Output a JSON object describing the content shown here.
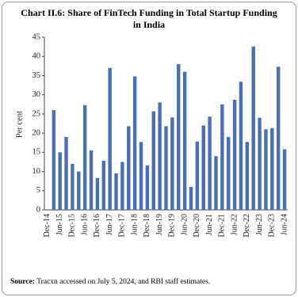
{
  "chart_data": {
    "type": "bar",
    "title": "Chart II.6: Share of FinTech Funding in Total Startup Funding in India",
    "y_label": "Per cent",
    "source_label": "Source:",
    "source_text": "Tracxn accessed on July 5, 2024, and RBI staff estimates.",
    "categories": [
      "Dec-14",
      null,
      "Jun-15",
      null,
      "Dec-15",
      null,
      "Jun-16",
      null,
      "Dec-16",
      null,
      "Jun-17",
      null,
      "Dec-17",
      null,
      "Jun-18",
      null,
      "Dec-18",
      null,
      "Jun-19",
      null,
      "Dec-19",
      null,
      "Jun-20",
      null,
      "Dec-20",
      null,
      "Jun-21",
      null,
      "Dec-21",
      null,
      "Jun-22",
      null,
      "Dec-22",
      null,
      "Jun-23",
      null,
      "Dec-23",
      null,
      "Jun-24"
    ],
    "values": [
      null,
      26,
      15,
      19,
      12,
      10,
      27.3,
      15.5,
      8.3,
      12.8,
      37,
      9.5,
      12.5,
      21.8,
      34.8,
      17.7,
      11.6,
      25.7,
      28,
      21.8,
      24.1,
      38,
      36,
      6,
      17.8,
      22,
      24.3,
      14,
      27.5,
      19,
      28.7,
      33.4,
      17.7,
      42.6,
      24,
      21,
      21.3,
      37.3,
      15.8
    ],
    "color": "#4a6fb5",
    "ylim": [
      0,
      45
    ],
    "yticks": [
      0,
      5,
      10,
      15,
      20,
      25,
      30,
      35,
      40,
      45
    ],
    "grid": false
  }
}
